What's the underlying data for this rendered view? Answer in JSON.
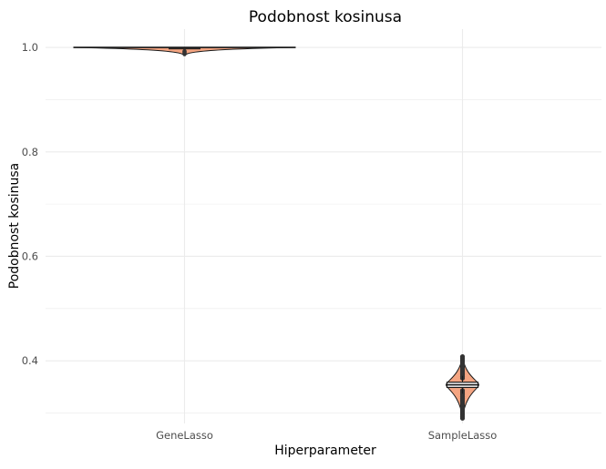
{
  "chart_data": {
    "type": "violin",
    "title": "Podobnost kosinusa",
    "xlabel": "Hiperparameter",
    "ylabel": "Podobnost kosinusa",
    "categories": [
      "GeneLasso",
      "SampleLasso"
    ],
    "ylim": [
      0.28,
      1.035
    ],
    "yticks": [
      0.4,
      0.6,
      0.8,
      1.0
    ],
    "ytick_labels": [
      "0.4",
      "0.6",
      "0.8",
      "1.0"
    ],
    "grid": true,
    "legend": "none",
    "groups": [
      {
        "category": "GeneLasso",
        "min": 0.987,
        "q1": 0.997,
        "median": 0.999,
        "q3": 1.0,
        "max": 1.0,
        "outlier_range": [
          0.987,
          0.993
        ],
        "violin_color": "#f4a582"
      },
      {
        "category": "SampleLasso",
        "min": 0.29,
        "q1": 0.349,
        "median": 0.354,
        "q3": 0.359,
        "max": 0.408,
        "outlier_range": [
          0.29,
          0.408
        ],
        "violin_color": "#f4a582"
      }
    ]
  },
  "colors": {
    "grid": "#ebebeb",
    "box_stroke": "#1a1a1a",
    "outlier": "#333333"
  }
}
